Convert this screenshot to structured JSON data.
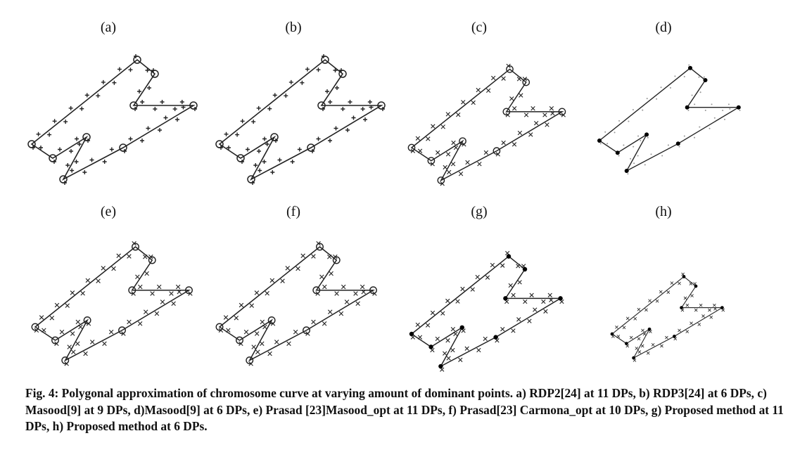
{
  "panels": [
    {
      "label": "(a)"
    },
    {
      "label": "(b)"
    },
    {
      "label": "(c)"
    },
    {
      "label": "(d)"
    },
    {
      "label": "(e)"
    },
    {
      "label": "(f)"
    },
    {
      "label": "(g)"
    },
    {
      "label": "(h)"
    }
  ],
  "caption": "Fig. 4: Polygonal approximation of chromosome curve at varying amount of dominant points. a) RDP2[24] at 11 DPs, b) RDP3[24] at 6 DPs, c) Masood[9] at 9 DPs, d)Masood[9] at 6 DPs, e) Prasad [23]Masood_opt at 11 DPs, f) Prasad[23] Carmona_opt at 10 DPs, g) Proposed method at 11 DPs, h) Proposed method at 6 DPs.",
  "colors": {
    "ink": "#222222",
    "faint": "#9a9a9a"
  }
}
